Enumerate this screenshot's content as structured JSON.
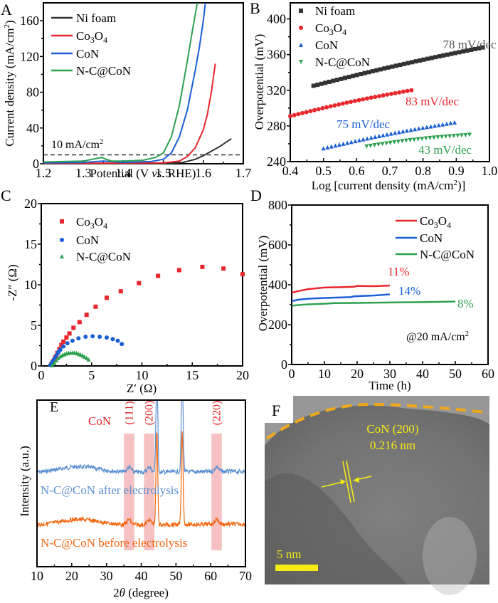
{
  "chart_data": [
    {
      "panel": "A",
      "type": "line",
      "xlabel": "Potential (V vs. RHE)",
      "ylabel": "Current density (mA/cm2)",
      "xlim": [
        1.2,
        1.7
      ],
      "ylim": [
        0,
        180
      ],
      "xticks": [
        "1.2",
        "1.3",
        "1.4",
        "1.5",
        "1.6",
        "1.7"
      ],
      "yticks": [
        "0",
        "40",
        "80",
        "120",
        "160"
      ],
      "legend_position": "top-left",
      "reference_line": {
        "y": 10,
        "label": "10 mA/cm2"
      },
      "series": [
        {
          "name": "Ni foam",
          "color": "#333333",
          "x": [
            1.2,
            1.3,
            1.4,
            1.5,
            1.55,
            1.58,
            1.6,
            1.62,
            1.64,
            1.67
          ],
          "y": [
            0,
            0,
            0,
            0.3,
            1.5,
            5,
            9,
            14,
            19,
            28
          ]
        },
        {
          "name": "Co3O4",
          "color": "#e8262b",
          "x": [
            1.2,
            1.3,
            1.4,
            1.5,
            1.54,
            1.56,
            1.58,
            1.6,
            1.61,
            1.62,
            1.63
          ],
          "y": [
            0.5,
            0.6,
            0.7,
            1,
            3,
            8,
            18,
            38,
            55,
            80,
            112
          ]
        },
        {
          "name": "CoN",
          "color": "#1a5fd6",
          "x": [
            1.2,
            1.3,
            1.35,
            1.4,
            1.47,
            1.5,
            1.52,
            1.54,
            1.56,
            1.58,
            1.59,
            1.6,
            1.605
          ],
          "y": [
            1,
            1.5,
            3,
            1.5,
            2.5,
            5,
            12,
            30,
            60,
            105,
            130,
            160,
            180
          ]
        },
        {
          "name": "N-C@CoN",
          "color": "#2ea14f",
          "x": [
            1.2,
            1.3,
            1.345,
            1.37,
            1.4,
            1.45,
            1.48,
            1.5,
            1.52,
            1.54,
            1.56,
            1.575,
            1.585
          ],
          "y": [
            2,
            3,
            7,
            3,
            3,
            4,
            7,
            12,
            30,
            65,
            115,
            155,
            180
          ]
        }
      ]
    },
    {
      "panel": "B",
      "type": "scatter",
      "xlabel": "Log [current density (mA/cm2)]",
      "ylabel": "Overpotential (mV)",
      "xlim": [
        0.4,
        1.0
      ],
      "ylim": [
        240,
        418
      ],
      "xticks": [
        "0.4",
        "0.5",
        "0.6",
        "0.7",
        "0.8",
        "0.9",
        "1.0"
      ],
      "yticks": [
        "240",
        "280",
        "320",
        "360",
        "400"
      ],
      "legend_position": "top-left",
      "series": [
        {
          "name": "Ni foam",
          "color": "#333333",
          "marker": "square",
          "x_range": [
            0.47,
            0.98
          ],
          "y_range": [
            325,
            368
          ],
          "annotation": "78 mV/dec"
        },
        {
          "name": "Co3O4",
          "color": "#e8262b",
          "marker": "circle",
          "x_range": [
            0.4,
            0.765
          ],
          "y_range": [
            291,
            320
          ],
          "annotation": "83 mV/dec"
        },
        {
          "name": "CoN",
          "color": "#1a5fd6",
          "marker": "triangle-up",
          "x_range": [
            0.5,
            0.895
          ],
          "y_range": [
            255,
            284
          ],
          "annotation": "75 mV/dec"
        },
        {
          "name": "N-C@CoN",
          "color": "#2ea14f",
          "marker": "triangle-down",
          "x_range": [
            0.63,
            0.94
          ],
          "y_range": [
            257,
            270
          ],
          "annotation": "43 mV/dec"
        }
      ]
    },
    {
      "panel": "C",
      "type": "scatter",
      "xlabel": "Z′ (Ω)",
      "ylabel": "-Z″ (Ω)",
      "xlim": [
        0,
        20
      ],
      "ylim": [
        0,
        20
      ],
      "xticks": [
        "0",
        "5",
        "10",
        "15",
        "20"
      ],
      "yticks": [
        "0",
        "5",
        "10",
        "15",
        "20"
      ],
      "legend_position": "top-left",
      "series": [
        {
          "name": "Co3O4",
          "color": "#e8262b",
          "marker": "square",
          "x": [
            1.0,
            1.2,
            1.4,
            1.6,
            1.8,
            2.0,
            2.2,
            2.5,
            2.8,
            3.2,
            3.8,
            4.5,
            5.4,
            6.5,
            7.9,
            9.7,
            11.6,
            13.7,
            16.0,
            18.1,
            20.0
          ],
          "y": [
            0.2,
            0.6,
            1.1,
            1.6,
            2.1,
            2.6,
            3.0,
            3.5,
            4.0,
            4.7,
            5.4,
            6.3,
            7.3,
            8.4,
            9.2,
            10.2,
            11.1,
            11.8,
            12.2,
            12.0,
            11.3
          ]
        },
        {
          "name": "CoN",
          "color": "#1a5fd6",
          "marker": "circle",
          "x": [
            0.9,
            1.1,
            1.3,
            1.5,
            1.7,
            1.9,
            2.2,
            2.6,
            3.1,
            3.7,
            4.4,
            5.1,
            5.8,
            6.5,
            7.1,
            7.6,
            8.0
          ],
          "y": [
            0.1,
            0.5,
            0.9,
            1.3,
            1.7,
            2.0,
            2.4,
            2.8,
            3.1,
            3.4,
            3.6,
            3.65,
            3.6,
            3.5,
            3.3,
            3.1,
            2.7
          ]
        },
        {
          "name": "N-C@CoN",
          "color": "#2ea14f",
          "marker": "triangle",
          "x": [
            1.1,
            1.3,
            1.5,
            1.7,
            1.9,
            2.1,
            2.3,
            2.5,
            2.7,
            2.9,
            3.1,
            3.3,
            3.5,
            3.7,
            3.9,
            4.1,
            4.3,
            4.5,
            4.7
          ],
          "y": [
            0.1,
            0.4,
            0.7,
            1.0,
            1.2,
            1.35,
            1.45,
            1.55,
            1.6,
            1.65,
            1.65,
            1.65,
            1.6,
            1.5,
            1.4,
            1.3,
            1.15,
            1.0,
            0.8
          ]
        }
      ]
    },
    {
      "panel": "D",
      "type": "line",
      "xlabel": "Time (h)",
      "ylabel": "Overpotential (mV)",
      "xlim": [
        0,
        60
      ],
      "ylim": [
        0,
        800
      ],
      "xticks": [
        "0",
        "10",
        "20",
        "30",
        "40",
        "50",
        "60"
      ],
      "yticks": [
        "0",
        "200",
        "400",
        "600",
        "800"
      ],
      "legend_position": "top-right",
      "annotation": "@20 mA/cm2",
      "series": [
        {
          "name": "Co3O4",
          "color": "#e8262b",
          "x": [
            0,
            2,
            5,
            10,
            15,
            19,
            20,
            25,
            30
          ],
          "y": [
            360,
            368,
            378,
            386,
            388,
            390,
            394,
            393,
            396
          ],
          "annotation": "11%"
        },
        {
          "name": "CoN",
          "color": "#1a5fd6",
          "x": [
            0,
            2,
            5,
            10,
            18,
            19,
            25,
            30
          ],
          "y": [
            318,
            325,
            330,
            334,
            338,
            342,
            346,
            352
          ],
          "annotation": "14%"
        },
        {
          "name": "N-C@CoN",
          "color": "#2ea14f",
          "x": [
            0,
            2,
            5,
            10,
            13,
            20,
            30,
            40,
            50
          ],
          "y": [
            295,
            298,
            302,
            305,
            308,
            309,
            311,
            313,
            316
          ],
          "annotation": "8%"
        }
      ]
    },
    {
      "panel": "E",
      "type": "line",
      "xlabel": "2θ (degree)",
      "ylabel": "Intensity (a.u.)",
      "xlim": [
        10,
        70
      ],
      "xticks": [
        "10",
        "20",
        "30",
        "40",
        "50",
        "60",
        "70"
      ],
      "phase_label": "CoN",
      "highlight_peaks": [
        {
          "label": "(111)",
          "x": 36.5
        },
        {
          "label": "(200)",
          "x": 42.3
        },
        {
          "label": "(220)",
          "x": 61.7
        }
      ],
      "substrate_peaks": [
        44.5,
        51.8
      ],
      "series": [
        {
          "name": "N-C@CoN after electrolysis",
          "color": "#5b8fd0"
        },
        {
          "name": "N-C@CoN before electrolysis",
          "color": "#f2660f"
        }
      ]
    }
  ],
  "panel_labels": {
    "A": "A",
    "B": "B",
    "C": "C",
    "D": "D",
    "E": "E",
    "F": "F"
  },
  "legend_A": {
    "ni": "Ni foam",
    "co3o4_base": "Co",
    "co3o4_sub1": "3",
    "co3o4_mid": "O",
    "co3o4_sub2": "4",
    "con": "CoN",
    "ncon": "N-C@CoN"
  },
  "tem": {
    "label_line1": "CoN (200)",
    "label_line2": "0.216 nm",
    "scale_bar": "5 nm"
  }
}
